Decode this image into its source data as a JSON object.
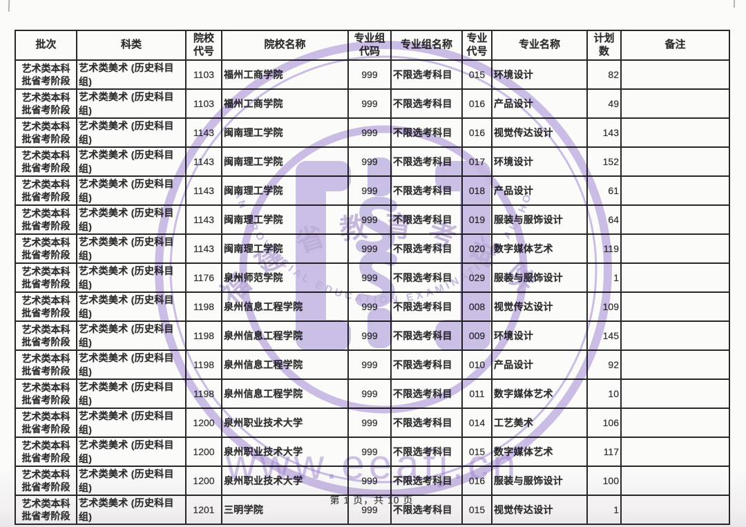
{
  "page": {
    "footer": "第 1 页，共 10 页"
  },
  "watermark": {
    "seal_top_text": "福建省教育考试院",
    "seal_bottom_text": "FUJIAN PROVINCIAL EDUCATION EXAMINATIONS AUTHORITY",
    "url_text": "www.eeafj.cn",
    "color": "#c6b5e6"
  },
  "table": {
    "headers": [
      "批次",
      "科类",
      "院校\n代号",
      "院校名称",
      "专业组\n代码",
      "专业组名称",
      "专业\n代号",
      "专业名称",
      "计划\n数",
      "备注"
    ],
    "rows": [
      [
        "艺术类本科批省考阶段",
        "艺术类美术 (历史科目组)",
        "1103",
        "福州工商学院",
        "999",
        "不限选考科目",
        "015",
        "环境设计",
        "82",
        ""
      ],
      [
        "艺术类本科批省考阶段",
        "艺术类美术 (历史科目组)",
        "1103",
        "福州工商学院",
        "999",
        "不限选考科目",
        "016",
        "产品设计",
        "49",
        ""
      ],
      [
        "艺术类本科批省考阶段",
        "艺术类美术 (历史科目组)",
        "1143",
        "闽南理工学院",
        "999",
        "不限选考科目",
        "016",
        "视觉传达设计",
        "143",
        ""
      ],
      [
        "艺术类本科批省考阶段",
        "艺术类美术 (历史科目组)",
        "1143",
        "闽南理工学院",
        "999",
        "不限选考科目",
        "017",
        "环境设计",
        "152",
        ""
      ],
      [
        "艺术类本科批省考阶段",
        "艺术类美术 (历史科目组)",
        "1143",
        "闽南理工学院",
        "999",
        "不限选考科目",
        "018",
        "产品设计",
        "61",
        ""
      ],
      [
        "艺术类本科批省考阶段",
        "艺术类美术 (历史科目组)",
        "1143",
        "闽南理工学院",
        "999",
        "不限选考科目",
        "019",
        "服装与服饰设计",
        "64",
        ""
      ],
      [
        "艺术类本科批省考阶段",
        "艺术类美术 (历史科目组)",
        "1143",
        "闽南理工学院",
        "999",
        "不限选考科目",
        "020",
        "数字媒体艺术",
        "119",
        ""
      ],
      [
        "艺术类本科批省考阶段",
        "艺术类美术 (历史科目组)",
        "1176",
        "泉州师范学院",
        "999",
        "不限选考科目",
        "029",
        "服装与服饰设计",
        "1",
        ""
      ],
      [
        "艺术类本科批省考阶段",
        "艺术类美术 (历史科目组)",
        "1198",
        "泉州信息工程学院",
        "999",
        "不限选考科目",
        "008",
        "视觉传达设计",
        "109",
        ""
      ],
      [
        "艺术类本科批省考阶段",
        "艺术类美术 (历史科目组)",
        "1198",
        "泉州信息工程学院",
        "999",
        "不限选考科目",
        "009",
        "环境设计",
        "145",
        ""
      ],
      [
        "艺术类本科批省考阶段",
        "艺术类美术 (历史科目组)",
        "1198",
        "泉州信息工程学院",
        "999",
        "不限选考科目",
        "010",
        "产品设计",
        "92",
        ""
      ],
      [
        "艺术类本科批省考阶段",
        "艺术类美术 (历史科目组)",
        "1198",
        "泉州信息工程学院",
        "999",
        "不限选考科目",
        "011",
        "数字媒体艺术",
        "10",
        ""
      ],
      [
        "艺术类本科批省考阶段",
        "艺术类美术 (历史科目组)",
        "1200",
        "泉州职业技术大学",
        "999",
        "不限选考科目",
        "014",
        "工艺美术",
        "106",
        ""
      ],
      [
        "艺术类本科批省考阶段",
        "艺术类美术 (历史科目组)",
        "1200",
        "泉州职业技术大学",
        "999",
        "不限选考科目",
        "015",
        "数字媒体艺术",
        "117",
        ""
      ],
      [
        "艺术类本科批省考阶段",
        "艺术类美术 (历史科目组)",
        "1200",
        "泉州职业技术大学",
        "999",
        "不限选考科目",
        "016",
        "服装与服饰设计",
        "100",
        ""
      ],
      [
        "艺术类本科批省考阶段",
        "艺术类美术 (历史科目组)",
        "1201",
        "三明学院",
        "999",
        "不限选考科目",
        "015",
        "视觉传达设计",
        "1",
        ""
      ]
    ]
  }
}
